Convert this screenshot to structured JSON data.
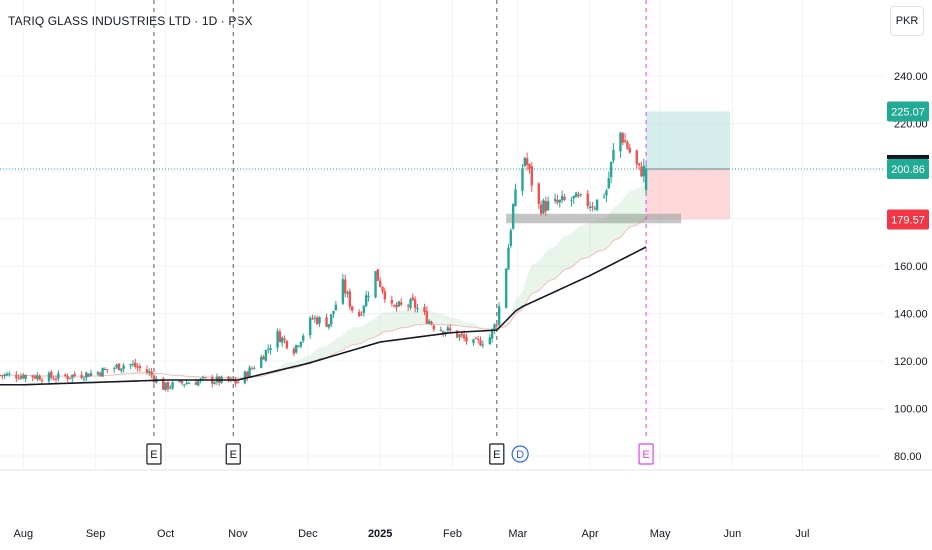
{
  "header": {
    "title": "TARIQ GLASS INDUSTRIES LTD · 1D · PSX",
    "currency_button": "PKR"
  },
  "colors": {
    "up": "#26a69a",
    "down": "#ef5350",
    "sma": "#131722",
    "profit_zone": "#b2dfdb",
    "loss_zone": "#fbc8cc",
    "tag_green": "#22ab94",
    "tag_red": "#f23645",
    "tag_dark": "#131722",
    "earnings_marker": "#131722",
    "earnings_marker_upcoming": "#e040fb",
    "dividend_marker": "#2962ff"
  },
  "chart_data": {
    "type": "candlestick",
    "x_range": [
      "2024-08-01",
      "2025-07-31"
    ],
    "ylim": [
      75,
      255
    ],
    "y_ticks": [
      80,
      100,
      120,
      140,
      160,
      180,
      200,
      220,
      240
    ],
    "y_tick_labels": [
      "80.00",
      "100.00",
      "120.00",
      "140.00",
      "160.00",
      "180.00",
      "200.00",
      "220.00",
      "240.00"
    ],
    "x_ticks": [
      {
        "date": "2024-08-01",
        "label": "Aug",
        "bold": false
      },
      {
        "date": "2024-09-01",
        "label": "Sep",
        "bold": false
      },
      {
        "date": "2024-10-01",
        "label": "Oct",
        "bold": false
      },
      {
        "date": "2024-11-01",
        "label": "Nov",
        "bold": false
      },
      {
        "date": "2024-12-01",
        "label": "Dec",
        "bold": false
      },
      {
        "date": "2025-01-01",
        "label": "2025",
        "bold": true
      },
      {
        "date": "2025-02-01",
        "label": "Feb",
        "bold": false
      },
      {
        "date": "2025-03-01",
        "label": "Mar",
        "bold": false
      },
      {
        "date": "2025-04-01",
        "label": "Apr",
        "bold": false
      },
      {
        "date": "2025-05-01",
        "label": "May",
        "bold": false
      },
      {
        "date": "2025-06-01",
        "label": "Jun",
        "bold": false
      },
      {
        "date": "2025-07-01",
        "label": "Jul",
        "bold": false
      }
    ],
    "price_series": [
      {
        "date": "2024-08-01",
        "close": 114
      },
      {
        "date": "2024-08-15",
        "close": 113
      },
      {
        "date": "2024-09-01",
        "close": 115
      },
      {
        "date": "2024-09-15",
        "close": 119
      },
      {
        "date": "2024-09-24",
        "close": 115
      },
      {
        "date": "2024-09-30",
        "close": 109
      },
      {
        "date": "2024-10-10",
        "close": 111
      },
      {
        "date": "2024-10-20",
        "close": 112
      },
      {
        "date": "2024-11-01",
        "close": 111
      },
      {
        "date": "2024-11-10",
        "close": 120
      },
      {
        "date": "2024-11-18",
        "close": 131
      },
      {
        "date": "2024-11-25",
        "close": 125
      },
      {
        "date": "2024-12-03",
        "close": 138
      },
      {
        "date": "2024-12-10",
        "close": 136
      },
      {
        "date": "2024-12-16",
        "close": 152
      },
      {
        "date": "2024-12-22",
        "close": 137
      },
      {
        "date": "2024-12-30",
        "close": 157
      },
      {
        "date": "2025-01-06",
        "close": 142
      },
      {
        "date": "2025-01-15",
        "close": 144
      },
      {
        "date": "2025-01-24",
        "close": 135
      },
      {
        "date": "2025-02-03",
        "close": 131
      },
      {
        "date": "2025-02-10",
        "close": 127
      },
      {
        "date": "2025-02-17",
        "close": 130
      },
      {
        "date": "2025-02-20",
        "close": 137
      },
      {
        "date": "2025-02-24",
        "close": 160
      },
      {
        "date": "2025-02-27",
        "close": 185
      },
      {
        "date": "2025-03-04",
        "close": 206
      },
      {
        "date": "2025-03-10",
        "close": 185
      },
      {
        "date": "2025-03-17",
        "close": 186
      },
      {
        "date": "2025-03-25",
        "close": 188
      },
      {
        "date": "2025-04-03",
        "close": 186
      },
      {
        "date": "2025-04-08",
        "close": 192
      },
      {
        "date": "2025-04-13",
        "close": 218
      },
      {
        "date": "2025-04-18",
        "close": 208
      },
      {
        "date": "2025-04-22",
        "close": 200
      },
      {
        "date": "2025-04-25",
        "close": 200.86
      }
    ],
    "moving_average_200": [
      {
        "date": "2024-08-01",
        "value": 110
      },
      {
        "date": "2024-09-01",
        "value": 111
      },
      {
        "date": "2024-10-01",
        "value": 112
      },
      {
        "date": "2024-11-01",
        "value": 112
      },
      {
        "date": "2024-12-01",
        "value": 119
      },
      {
        "date": "2025-01-01",
        "value": 128
      },
      {
        "date": "2025-02-01",
        "value": 132
      },
      {
        "date": "2025-02-20",
        "value": 133
      },
      {
        "date": "2025-03-01",
        "value": 142
      },
      {
        "date": "2025-04-01",
        "value": 156
      },
      {
        "date": "2025-04-25",
        "value": 168
      }
    ],
    "position": {
      "type": "long",
      "start_date": "2025-04-25",
      "end_date": "2025-05-31",
      "entry": 200.86,
      "target": 225.07,
      "stop": 179.57
    },
    "last_price": 200.86,
    "price_labels": {
      "target": "225.07",
      "last": "200.86",
      "stop": "179.57"
    },
    "support_zone": {
      "start_date": "2025-02-24",
      "end_date": "2025-05-10",
      "low": 178,
      "high": 182
    },
    "events": [
      {
        "date": "2024-09-26",
        "label": "E",
        "kind": "earnings"
      },
      {
        "date": "2024-10-30",
        "label": "E",
        "kind": "earnings"
      },
      {
        "date": "2025-02-20",
        "label": "E",
        "kind": "earnings"
      },
      {
        "date": "2025-03-02",
        "label": "D",
        "kind": "dividend"
      },
      {
        "date": "2025-04-25",
        "label": "E",
        "kind": "earnings-upcoming"
      }
    ]
  }
}
